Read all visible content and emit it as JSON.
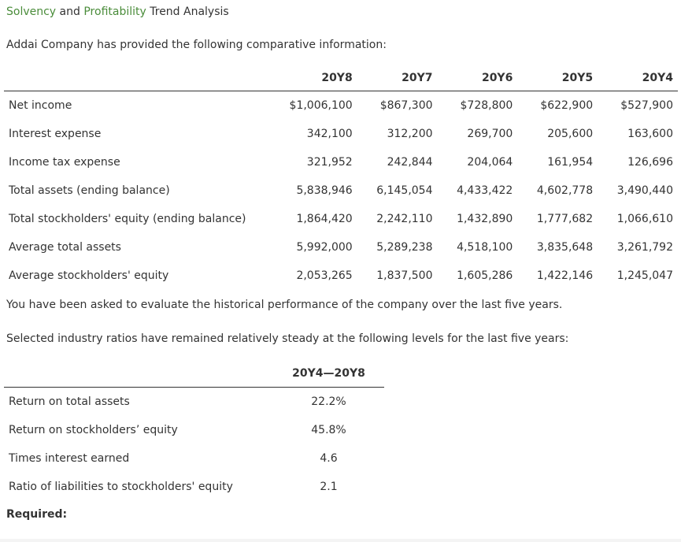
{
  "title": {
    "part1": "Solvency",
    "and": " and ",
    "part2": "Profitability",
    "rest": " Trend Analysis"
  },
  "intro": "Addai Company has provided the following comparative information:",
  "main_table": {
    "headers": [
      "",
      "20Y8",
      "20Y7",
      "20Y6",
      "20Y5",
      "20Y4"
    ],
    "rows": [
      {
        "label": "Net income",
        "values": [
          "$1,006,100",
          "$867,300",
          "$728,800",
          "$622,900",
          "$527,900"
        ]
      },
      {
        "label": "Interest expense",
        "values": [
          "342,100",
          "312,200",
          "269,700",
          "205,600",
          "163,600"
        ]
      },
      {
        "label": "Income tax expense",
        "values": [
          "321,952",
          "242,844",
          "204,064",
          "161,954",
          "126,696"
        ]
      },
      {
        "label": "Total assets (ending balance)",
        "values": [
          "5,838,946",
          "6,145,054",
          "4,433,422",
          "4,602,778",
          "3,490,440"
        ]
      },
      {
        "label": "Total stockholders' equity (ending balance)",
        "values": [
          "1,864,420",
          "2,242,110",
          "1,432,890",
          "1,777,682",
          "1,066,610"
        ]
      },
      {
        "label": "Average total assets",
        "values": [
          "5,992,000",
          "5,289,238",
          "4,518,100",
          "3,835,648",
          "3,261,792"
        ]
      },
      {
        "label": "Average stockholders' equity",
        "values": [
          "2,053,265",
          "1,837,500",
          "1,605,286",
          "1,422,146",
          "1,245,047"
        ]
      }
    ]
  },
  "evaluate_text": "You have been asked to evaluate the historical performance of the company over the last five years.",
  "selected_text": "Selected industry ratios have remained relatively steady at the following levels for the last five years:",
  "ratio_table": {
    "header": "20Y4—20Y8",
    "rows": [
      {
        "label": "Return on total assets",
        "value": "22.2%"
      },
      {
        "label": "Return on stockholders’ equity",
        "value": "45.8%"
      },
      {
        "label": "Times interest earned",
        "value": "4.6"
      },
      {
        "label": "Ratio of liabilities to stockholders' equity",
        "value": "2.1"
      }
    ]
  },
  "required": "Required:"
}
